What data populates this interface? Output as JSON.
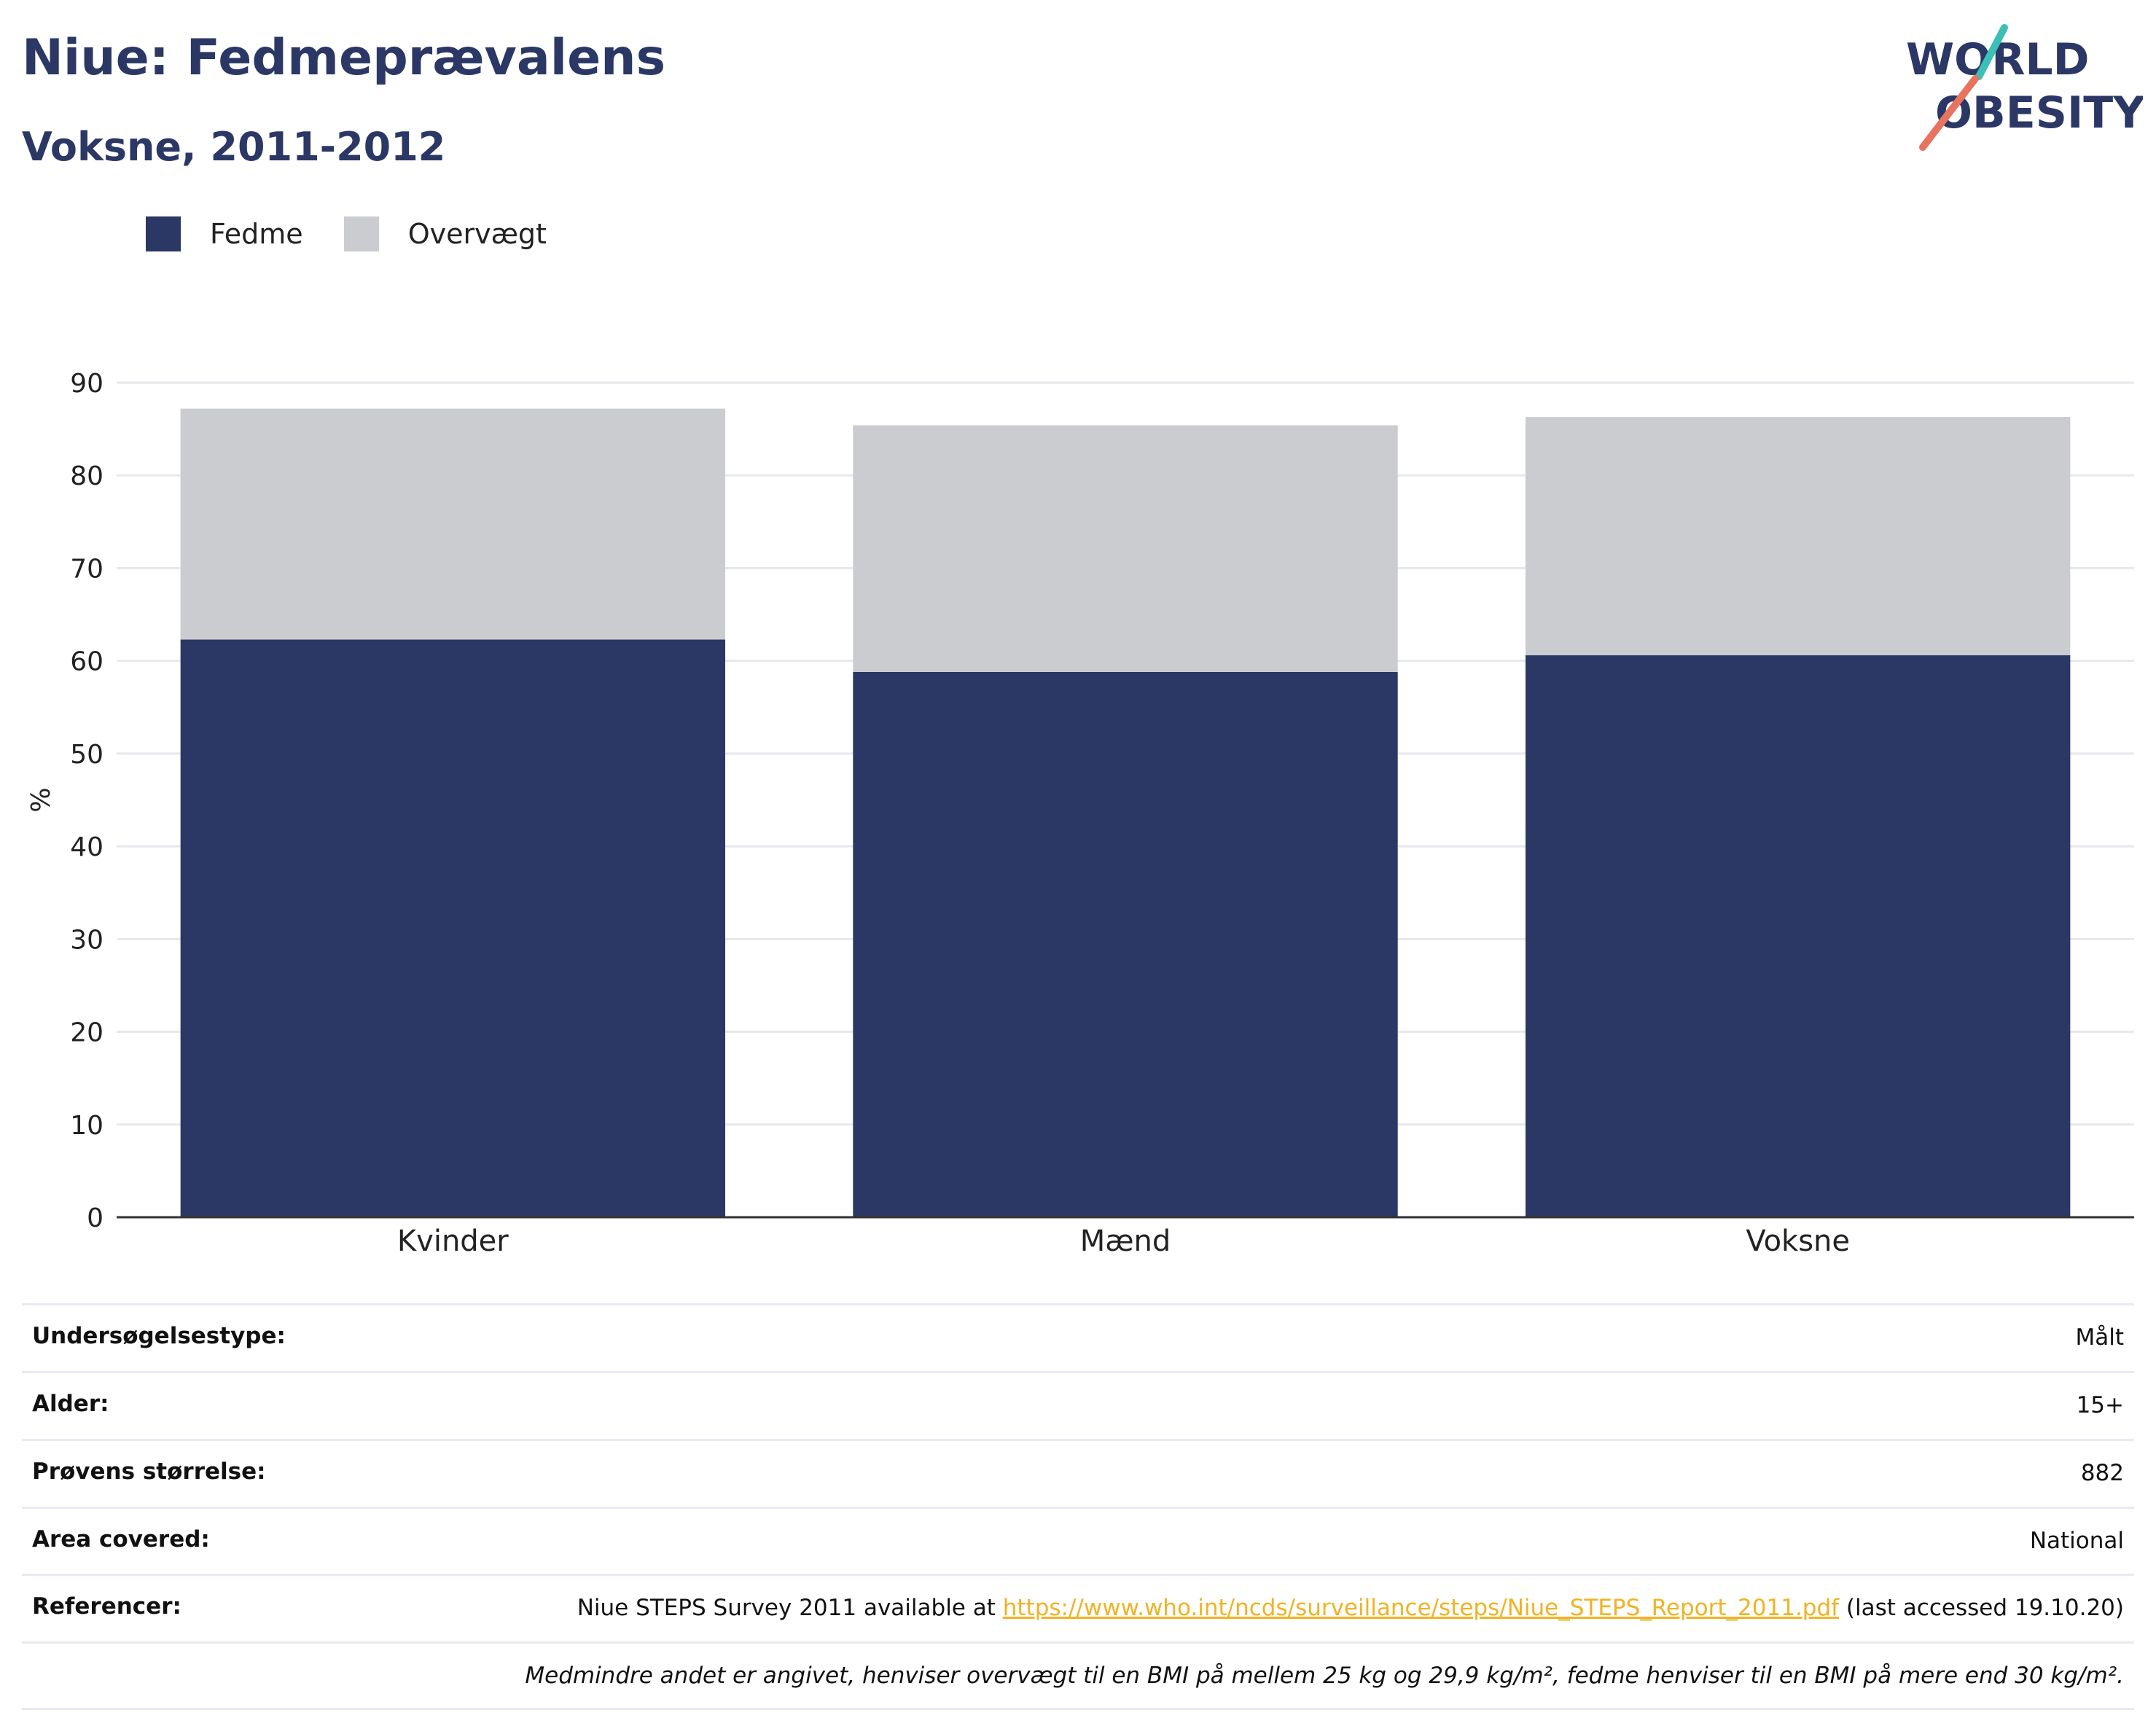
{
  "header": {
    "title": "Niue: Fedmeprævalens",
    "subtitle": "Voksne, 2011-2012"
  },
  "logo": {
    "line1": "WORLD",
    "line2": "OBESITY"
  },
  "colors": {
    "fedme": "#2b3764",
    "overvaegt": "#cacccf",
    "logo_teal": "#3bbfb7",
    "logo_coral": "#e8735e",
    "link": "#f0b323"
  },
  "chart_data": {
    "type": "bar",
    "stacked": true,
    "title": "Niue: Fedmeprævalens",
    "subtitle": "Voksne, 2011-2012",
    "ylabel": "%",
    "xlabel": "",
    "ylim": [
      0,
      90
    ],
    "yticks": [
      0,
      10,
      20,
      30,
      40,
      50,
      60,
      70,
      80,
      90
    ],
    "grid": true,
    "legend_position": "top-left",
    "categories": [
      "Kvinder",
      "Mænd",
      "Voksne"
    ],
    "series": [
      {
        "name": "Fedme",
        "values": [
          62.3,
          58.8,
          60.6
        ]
      },
      {
        "name": "Overvægt",
        "values": [
          24.9,
          26.6,
          25.7
        ]
      }
    ]
  },
  "info": {
    "rows": [
      {
        "key": "Undersøgelsestype:",
        "value": "Målt"
      },
      {
        "key": "Alder:",
        "value": "15+"
      },
      {
        "key": "Prøvens størrelse:",
        "value": "882"
      },
      {
        "key": "Area covered:",
        "value": "National"
      }
    ],
    "reference": {
      "key": "Referencer:",
      "prefix": "Niue STEPS Survey 2011 available at ",
      "link": "https://www.who.int/ncds/surveillance/steps/Niue_STEPS_Report_2011.pdf",
      "suffix": " (last accessed 19.10.20)"
    },
    "note": "Medmindre andet er angivet, henviser overvægt til en BMI på mellem 25 kg og 29,9 kg/m², fedme henviser til en BMI på mere end 30 kg/m²."
  }
}
